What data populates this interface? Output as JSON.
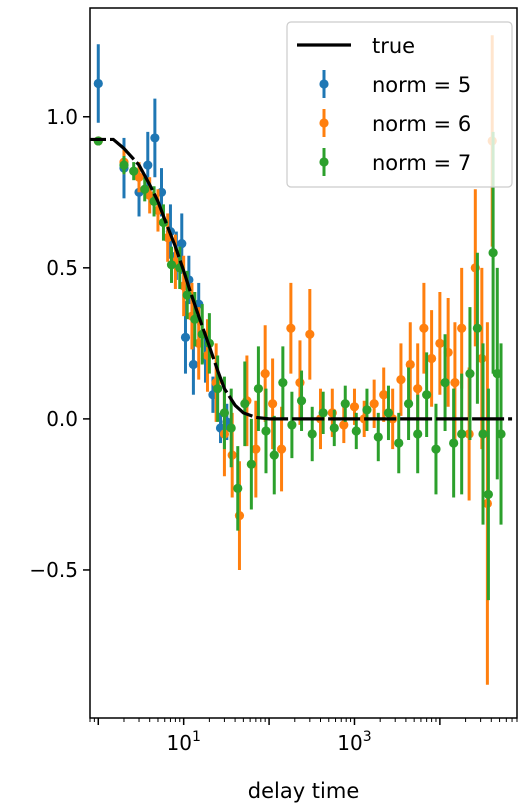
{
  "chart_data": {
    "type": "scatter",
    "title": "",
    "xlabel": "delay time",
    "ylabel": "",
    "xscale": "log",
    "xlim": [
      0.8,
      80000
    ],
    "ylim": [
      -0.99,
      1.36
    ],
    "grid": false,
    "legend": {
      "placement": "top-right"
    },
    "x_tick_labels": [
      {
        "value": 10,
        "label": "10",
        "exponent": "1"
      },
      {
        "value": 1000,
        "label": "10",
        "exponent": "3"
      }
    ],
    "y_tick_labels": [
      {
        "value": 1.0,
        "label": "1.0"
      },
      {
        "value": 0.5,
        "label": "0.5"
      },
      {
        "value": 0.0,
        "label": "0.0"
      },
      {
        "value": -0.5,
        "label": "−0.5"
      }
    ],
    "true_curve": {
      "name": "true",
      "color": "#000000",
      "x": [
        0.8,
        1,
        1.5,
        2,
        3,
        4,
        5,
        6,
        8,
        10,
        12,
        15,
        20,
        25,
        30,
        40,
        50,
        70,
        100,
        200,
        500,
        1000,
        5000,
        10000,
        30000,
        70000
      ],
      "y": [
        0.925,
        0.925,
        0.925,
        0.895,
        0.84,
        0.775,
        0.72,
        0.66,
        0.57,
        0.49,
        0.42,
        0.34,
        0.24,
        0.16,
        0.1,
        0.045,
        0.02,
        0.005,
        0.0,
        0.0,
        0.0,
        0.0,
        0.0,
        0.0,
        0.0,
        0.0
      ]
    },
    "series": [
      {
        "name": "norm = 5",
        "color": "#1f77b4",
        "points": [
          {
            "x": 1.0,
            "y": 1.11,
            "err": 0.13
          },
          {
            "x": 2.0,
            "y": 0.83,
            "err": 0.1
          },
          {
            "x": 3.0,
            "y": 0.75,
            "err": 0.08
          },
          {
            "x": 3.8,
            "y": 0.84,
            "err": 0.11
          },
          {
            "x": 4.6,
            "y": 0.93,
            "err": 0.13
          },
          {
            "x": 5.5,
            "y": 0.75,
            "err": 0.08
          },
          {
            "x": 7.0,
            "y": 0.62,
            "err": 0.09
          },
          {
            "x": 8.2,
            "y": 0.54,
            "err": 0.08
          },
          {
            "x": 9.5,
            "y": 0.58,
            "err": 0.1
          },
          {
            "x": 10.5,
            "y": 0.27,
            "err": 0.12
          },
          {
            "x": 11.5,
            "y": 0.46,
            "err": 0.08
          },
          {
            "x": 13.0,
            "y": 0.18,
            "err": 0.1
          },
          {
            "x": 15.0,
            "y": 0.38,
            "err": 0.07
          },
          {
            "x": 18.0,
            "y": 0.2,
            "err": 0.08
          },
          {
            "x": 22.0,
            "y": 0.08,
            "err": 0.06
          },
          {
            "x": 27.0,
            "y": -0.03,
            "err": 0.05
          },
          {
            "x": 32.0,
            "y": -0.01,
            "err": 0.06
          }
        ]
      },
      {
        "name": "norm = 6",
        "color": "#ff7f0e",
        "points": [
          {
            "x": 1.0,
            "y": 0.92,
            "err": 0.01
          },
          {
            "x": 2.0,
            "y": 0.85,
            "err": 0.04
          },
          {
            "x": 3.0,
            "y": 0.8,
            "err": 0.05
          },
          {
            "x": 4.0,
            "y": 0.74,
            "err": 0.06
          },
          {
            "x": 5.0,
            "y": 0.69,
            "err": 0.07
          },
          {
            "x": 6.5,
            "y": 0.6,
            "err": 0.08
          },
          {
            "x": 8.0,
            "y": 0.52,
            "err": 0.09
          },
          {
            "x": 10.0,
            "y": 0.44,
            "err": 0.1
          },
          {
            "x": 12.5,
            "y": 0.34,
            "err": 0.11
          },
          {
            "x": 15.0,
            "y": 0.25,
            "err": 0.12
          },
          {
            "x": 19.0,
            "y": 0.21,
            "err": 0.12
          },
          {
            "x": 24.0,
            "y": 0.12,
            "err": 0.13
          },
          {
            "x": 30.0,
            "y": -0.05,
            "err": 0.14
          },
          {
            "x": 37.0,
            "y": -0.12,
            "err": 0.14
          },
          {
            "x": 45.0,
            "y": -0.32,
            "err": 0.18
          },
          {
            "x": 55.0,
            "y": 0.06,
            "err": 0.15
          },
          {
            "x": 70.0,
            "y": -0.1,
            "err": 0.16
          },
          {
            "x": 90.0,
            "y": 0.15,
            "err": 0.16
          },
          {
            "x": 110.0,
            "y": 0.05,
            "err": 0.15
          },
          {
            "x": 140.0,
            "y": -0.1,
            "err": 0.14
          },
          {
            "x": 180.0,
            "y": 0.3,
            "err": 0.15
          },
          {
            "x": 230.0,
            "y": 0.12,
            "err": 0.14
          },
          {
            "x": 300.0,
            "y": 0.28,
            "err": 0.15
          },
          {
            "x": 400.0,
            "y": 0.0,
            "err": 0.1
          },
          {
            "x": 550.0,
            "y": 0.02,
            "err": 0.08
          },
          {
            "x": 750.0,
            "y": -0.02,
            "err": 0.06
          },
          {
            "x": 1000.0,
            "y": 0.04,
            "err": 0.06
          },
          {
            "x": 1300.0,
            "y": 0.0,
            "err": 0.06
          },
          {
            "x": 1700.0,
            "y": 0.05,
            "err": 0.08
          },
          {
            "x": 2200.0,
            "y": 0.08,
            "err": 0.09
          },
          {
            "x": 2800.0,
            "y": 0.0,
            "err": 0.1
          },
          {
            "x": 3500.0,
            "y": 0.13,
            "err": 0.12
          },
          {
            "x": 4500.0,
            "y": 0.18,
            "err": 0.14
          },
          {
            "x": 5500.0,
            "y": 0.1,
            "err": 0.15
          },
          {
            "x": 6500.0,
            "y": 0.3,
            "err": 0.15
          },
          {
            "x": 8000.0,
            "y": 0.2,
            "err": 0.16
          },
          {
            "x": 10000.0,
            "y": 0.25,
            "err": 0.17
          },
          {
            "x": 12500.0,
            "y": 0.22,
            "err": 0.18
          },
          {
            "x": 15000.0,
            "y": 0.12,
            "err": 0.2
          },
          {
            "x": 18000.0,
            "y": 0.3,
            "err": 0.2
          },
          {
            "x": 22000.0,
            "y": -0.05,
            "err": 0.22
          },
          {
            "x": 26000.0,
            "y": 0.5,
            "err": 0.26
          },
          {
            "x": 31000.0,
            "y": 0.2,
            "err": 0.3
          },
          {
            "x": 36000.0,
            "y": -0.28,
            "err": 0.6
          },
          {
            "x": 41000.0,
            "y": 0.92,
            "err": 0.35
          }
        ]
      },
      {
        "name": "norm = 7",
        "color": "#2ca02c",
        "points": [
          {
            "x": 1.0,
            "y": 0.92,
            "err": 0.01
          },
          {
            "x": 2.0,
            "y": 0.84,
            "err": 0.03
          },
          {
            "x": 2.6,
            "y": 0.82,
            "err": 0.03
          },
          {
            "x": 3.5,
            "y": 0.76,
            "err": 0.04
          },
          {
            "x": 4.5,
            "y": 0.72,
            "err": 0.05
          },
          {
            "x": 5.8,
            "y": 0.65,
            "err": 0.06
          },
          {
            "x": 7.2,
            "y": 0.51,
            "err": 0.06
          },
          {
            "x": 9.0,
            "y": 0.5,
            "err": 0.07
          },
          {
            "x": 11.0,
            "y": 0.41,
            "err": 0.08
          },
          {
            "x": 13.5,
            "y": 0.33,
            "err": 0.09
          },
          {
            "x": 16.5,
            "y": 0.28,
            "err": 0.1
          },
          {
            "x": 20.0,
            "y": 0.25,
            "err": 0.1
          },
          {
            "x": 25.0,
            "y": 0.1,
            "err": 0.11
          },
          {
            "x": 30.0,
            "y": 0.02,
            "err": 0.12
          },
          {
            "x": 36.0,
            "y": -0.03,
            "err": 0.13
          },
          {
            "x": 43.0,
            "y": -0.23,
            "err": 0.14
          },
          {
            "x": 52.0,
            "y": 0.05,
            "err": 0.14
          },
          {
            "x": 62.0,
            "y": -0.15,
            "err": 0.15
          },
          {
            "x": 75.0,
            "y": 0.1,
            "err": 0.14
          },
          {
            "x": 92.0,
            "y": -0.04,
            "err": 0.14
          },
          {
            "x": 115.0,
            "y": -0.12,
            "err": 0.13
          },
          {
            "x": 145.0,
            "y": 0.12,
            "err": 0.12
          },
          {
            "x": 185.0,
            "y": -0.02,
            "err": 0.11
          },
          {
            "x": 240.0,
            "y": 0.06,
            "err": 0.1
          },
          {
            "x": 320.0,
            "y": -0.05,
            "err": 0.09
          },
          {
            "x": 430.0,
            "y": 0.02,
            "err": 0.07
          },
          {
            "x": 580.0,
            "y": -0.03,
            "err": 0.06
          },
          {
            "x": 780.0,
            "y": 0.05,
            "err": 0.06
          },
          {
            "x": 1050.0,
            "y": -0.04,
            "err": 0.06
          },
          {
            "x": 1400.0,
            "y": 0.03,
            "err": 0.07
          },
          {
            "x": 1900.0,
            "y": -0.06,
            "err": 0.08
          },
          {
            "x": 2500.0,
            "y": 0.02,
            "err": 0.09
          },
          {
            "x": 3300.0,
            "y": -0.08,
            "err": 0.1
          },
          {
            "x": 4300.0,
            "y": 0.05,
            "err": 0.12
          },
          {
            "x": 5500.0,
            "y": -0.05,
            "err": 0.13
          },
          {
            "x": 7000.0,
            "y": 0.08,
            "err": 0.14
          },
          {
            "x": 9000.0,
            "y": -0.1,
            "err": 0.15
          },
          {
            "x": 11500.0,
            "y": 0.12,
            "err": 0.16
          },
          {
            "x": 14500.0,
            "y": -0.08,
            "err": 0.18
          },
          {
            "x": 18000.0,
            "y": -0.05,
            "err": 0.2
          },
          {
            "x": 22500.0,
            "y": 0.15,
            "err": 0.22
          },
          {
            "x": 27500.0,
            "y": 0.3,
            "err": 0.25
          },
          {
            "x": 32000.0,
            "y": -0.05,
            "err": 0.3
          },
          {
            "x": 37000.0,
            "y": -0.25,
            "err": 0.35
          },
          {
            "x": 42000.0,
            "y": 0.55,
            "err": 0.4
          },
          {
            "x": 47000.0,
            "y": 0.15,
            "err": 0.35
          },
          {
            "x": 52000.0,
            "y": -0.05,
            "err": 0.3
          }
        ]
      }
    ]
  }
}
